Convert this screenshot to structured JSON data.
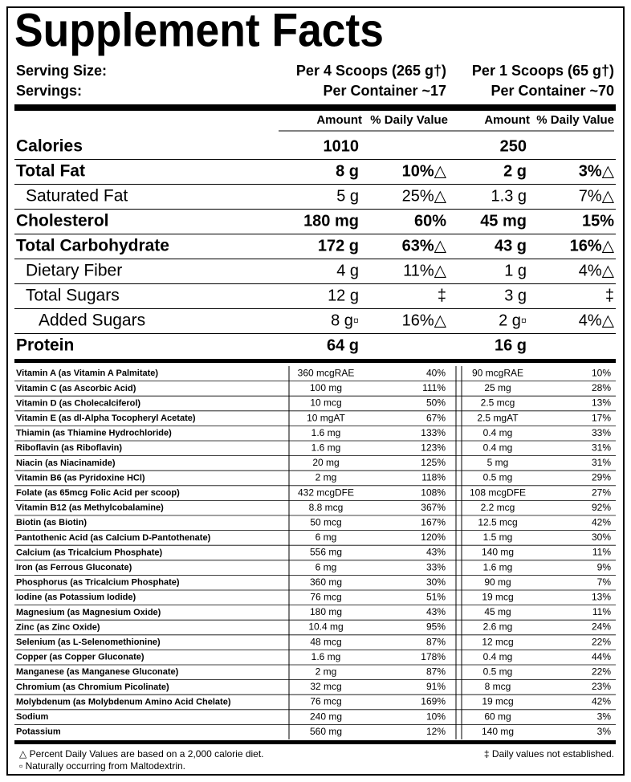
{
  "header": {
    "title": "Supplement Facts",
    "serving_size_label": "Serving Size:",
    "servings_label": "Servings:",
    "col_a_serving": "Per 4 Scoops (265 g†)",
    "col_a_servings": "Per Container ~17",
    "col_b_serving": "Per 1 Scoops (65 g†)",
    "col_b_servings": "Per Container ~70"
  },
  "columns": [
    "Amount",
    "% Daily Value",
    "Amount",
    "% Daily Value"
  ],
  "macros": [
    [
      "Calories",
      "1010",
      null,
      "250",
      null
    ],
    [
      "Total Fat",
      "8 g",
      "10%△",
      "2 g",
      "3%△"
    ],
    [
      "Saturated Fat",
      "5 g",
      "25%△",
      "1.3 g",
      "7%△"
    ],
    [
      "Cholesterol",
      "180 mg",
      "60%",
      "45 mg",
      "15%"
    ],
    [
      "Total Carbohydrate",
      "172 g",
      "63%△",
      "43 g",
      "16%△"
    ],
    [
      "Dietary Fiber",
      "4 g",
      "11%△",
      "1 g",
      "4%△"
    ],
    [
      "Total Sugars",
      "12 g",
      "‡",
      "3 g",
      "‡"
    ],
    [
      "Added Sugars",
      "8 g▫",
      "16%△",
      "2 g▫",
      "4%△"
    ],
    [
      "Protein",
      "64 g",
      null,
      "16 g",
      null
    ]
  ],
  "micros": [
    [
      "Vitamin A (as Vitamin A Palmitate)",
      "360 mcgRAE",
      "40%",
      "90 mcgRAE",
      "10%"
    ],
    [
      "Vitamin C (as Ascorbic Acid)",
      "100 mg",
      "111%",
      "25 mg",
      "28%"
    ],
    [
      "Vitamin D (as Cholecalciferol)",
      "10 mcg",
      "50%",
      "2.5 mcg",
      "13%"
    ],
    [
      "Vitamin E (as dl-Alpha Tocopheryl Acetate)",
      "10 mgAT",
      "67%",
      "2.5 mgAT",
      "17%"
    ],
    [
      "Thiamin (as Thiamine Hydrochloride)",
      "1.6 mg",
      "133%",
      "0.4 mg",
      "33%"
    ],
    [
      "Riboflavin (as Riboflavin)",
      "1.6 mg",
      "123%",
      "0.4 mg",
      "31%"
    ],
    [
      "Niacin (as Niacinamide)",
      "20 mg",
      "125%",
      "5 mg",
      "31%"
    ],
    [
      "Vitamin B6 (as Pyridoxine HCl)",
      "2 mg",
      "118%",
      "0.5 mg",
      "29%"
    ],
    [
      "Folate (as 65mcg Folic Acid per scoop)",
      "432 mcgDFE",
      "108%",
      "108 mcgDFE",
      "27%"
    ],
    [
      "Vitamin B12 (as Methylcobalamine)",
      "8.8 mcg",
      "367%",
      "2.2 mcg",
      "92%"
    ],
    [
      "Biotin (as Biotin)",
      "50 mcg",
      "167%",
      "12.5 mcg",
      "42%"
    ],
    [
      "Pantothenic Acid (as Calcium D-Pantothenate)",
      "6 mg",
      "120%",
      "1.5 mg",
      "30%"
    ],
    [
      "Calcium (as Tricalcium Phosphate)",
      "556 mg",
      "43%",
      "140 mg",
      "11%"
    ],
    [
      "Iron (as Ferrous Gluconate)",
      "6 mg",
      "33%",
      "1.6 mg",
      "9%"
    ],
    [
      "Phosphorus (as Tricalcium Phosphate)",
      "360 mg",
      "30%",
      "90 mg",
      "7%"
    ],
    [
      "Iodine (as Potassium Iodide)",
      "76 mcg",
      "51%",
      "19 mcg",
      "13%"
    ],
    [
      "Magnesium (as Magnesium Oxide)",
      "180 mg",
      "43%",
      "45 mg",
      "11%"
    ],
    [
      "Zinc (as Zinc Oxide)",
      "10.4 mg",
      "95%",
      "2.6 mg",
      "24%"
    ],
    [
      "Selenium (as L-Selenomethionine)",
      "48 mcg",
      "87%",
      "12 mcg",
      "22%"
    ],
    [
      "Copper (as Copper Gluconate)",
      "1.6 mg",
      "178%",
      "0.4 mg",
      "44%"
    ],
    [
      "Manganese (as Manganese Gluconate)",
      "2 mg",
      "87%",
      "0.5 mg",
      "22%"
    ],
    [
      "Chromium (as Chromium Picolinate)",
      "32 mcg",
      "91%",
      "8 mcg",
      "23%"
    ],
    [
      "Molybdenum (as Molybdenum Amino Acid Chelate)",
      "76 mcg",
      "169%",
      "19 mcg",
      "42%"
    ],
    [
      "Sodium",
      "240 mg",
      "10%",
      "60 mg",
      "3%"
    ],
    [
      "Potassium",
      "560 mg",
      "12%",
      "140 mg",
      "3%"
    ]
  ],
  "footnotes": {
    "dv": "△ Percent Daily Values are based on a 2,000 calorie diet.",
    "natural": "▫ Naturally occurring from Maltodextrin.",
    "not_established": "‡ Daily values not established."
  }
}
